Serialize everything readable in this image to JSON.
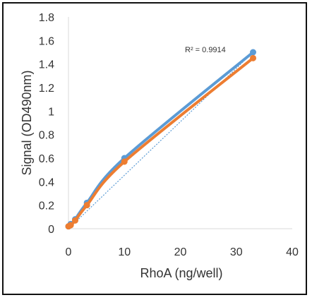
{
  "chart_data": {
    "type": "line",
    "xlabel": "RhoA (ng/well)",
    "ylabel": "Signal (OD490nm)",
    "xlim": [
      0,
      40
    ],
    "ylim": [
      0,
      1.8
    ],
    "x_ticks": [
      "0",
      "10",
      "20",
      "30",
      "40"
    ],
    "y_ticks": [
      "0",
      "0.2",
      "0.4",
      "0.6",
      "0.8",
      "1",
      "1.2",
      "1.4",
      "1.6",
      "1.8"
    ],
    "grid": false,
    "legend": "none",
    "annotation": "R² = 0.9914",
    "series": [
      {
        "color": "#5B9BD5",
        "x": [
          0,
          0.4,
          1.2,
          3.3,
          10,
          33
        ],
        "y": [
          0.02,
          0.04,
          0.08,
          0.22,
          0.6,
          1.5
        ]
      },
      {
        "color": "#ED7D31",
        "x": [
          0,
          0.4,
          1.2,
          3.3,
          10,
          33
        ],
        "y": [
          0.02,
          0.03,
          0.07,
          0.2,
          0.57,
          1.45
        ]
      }
    ],
    "trendline": {
      "color": "#5B9BD5",
      "style": "dotted",
      "x": [
        0,
        33
      ],
      "y": [
        0.0,
        1.5
      ]
    }
  }
}
